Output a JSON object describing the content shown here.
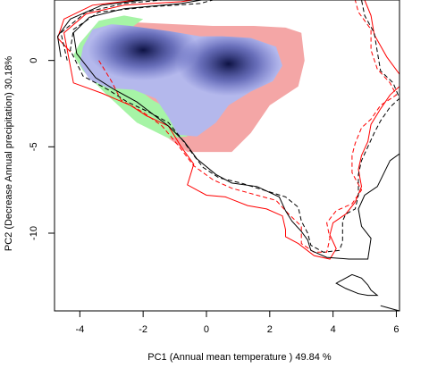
{
  "chart_data": {
    "type": "niche_overlap_map",
    "title": "",
    "xlabel": "PC1 (Annual mean temperature ) 49.84 %",
    "ylabel": "PC2 (Decrease Annual precipitation) 30.18%",
    "xlim": [
      -4.8,
      6.1
    ],
    "ylim": [
      -14.5,
      3.5
    ],
    "x_ticks": [
      -4,
      -2,
      0,
      2,
      4,
      6
    ],
    "y_ticks": [
      0,
      -5,
      -10
    ],
    "grid": false,
    "legend": "none",
    "colors": {
      "niche_a_only": "#f4a6a6",
      "niche_b_only": "#a6f4a6",
      "overlap": "#0a1050",
      "environment_a_line": "#ff0000",
      "environment_b_line": "#000000"
    },
    "density_peaks": [
      {
        "x": -2.0,
        "y": 0.6
      },
      {
        "x": 0.7,
        "y": -0.2
      }
    ],
    "regions": {
      "niche_a_only": [
        [
          -3.8,
          1.4
        ],
        [
          -3.2,
          2.0
        ],
        [
          -2.2,
          2.2
        ],
        [
          -1.0,
          2.1
        ],
        [
          0.2,
          2.0
        ],
        [
          1.5,
          2.0
        ],
        [
          2.5,
          1.9
        ],
        [
          3.0,
          1.6
        ],
        [
          3.1,
          0.0
        ],
        [
          2.9,
          -1.5
        ],
        [
          2.0,
          -2.6
        ],
        [
          1.4,
          -4.2
        ],
        [
          0.8,
          -5.3
        ],
        [
          -0.6,
          -5.3
        ],
        [
          -1.2,
          -4.5
        ],
        [
          -1.4,
          -3.2
        ],
        [
          -1.8,
          -2.2
        ],
        [
          -2.8,
          -1.5
        ],
        [
          -3.6,
          -0.8
        ],
        [
          -4.1,
          0.2
        ]
      ],
      "niche_b_only": [
        [
          -4.0,
          1.0
        ],
        [
          -3.4,
          2.3
        ],
        [
          -2.6,
          2.6
        ],
        [
          -2.0,
          2.4
        ],
        [
          -2.6,
          1.6
        ],
        [
          -3.0,
          0.6
        ],
        [
          -3.0,
          -0.6
        ],
        [
          -2.2,
          -1.6
        ],
        [
          -1.7,
          -2.3
        ],
        [
          -1.0,
          -3.0
        ],
        [
          -0.6,
          -4.4
        ],
        [
          -1.2,
          -4.5
        ],
        [
          -2.2,
          -3.6
        ],
        [
          -3.2,
          -1.9
        ],
        [
          -3.9,
          -0.6
        ],
        [
          -4.2,
          0.3
        ]
      ],
      "overlap": [
        [
          -3.9,
          0.8
        ],
        [
          -3.6,
          1.8
        ],
        [
          -3.0,
          2.1
        ],
        [
          -2.4,
          2.0
        ],
        [
          -1.2,
          1.7
        ],
        [
          -0.2,
          1.4
        ],
        [
          0.5,
          1.4
        ],
        [
          1.4,
          1.3
        ],
        [
          2.2,
          0.8
        ],
        [
          2.4,
          -0.3
        ],
        [
          2.1,
          -1.2
        ],
        [
          1.4,
          -1.8
        ],
        [
          0.7,
          -2.6
        ],
        [
          0.3,
          -3.6
        ],
        [
          -0.3,
          -4.4
        ],
        [
          -0.9,
          -4.3
        ],
        [
          -1.2,
          -3.3
        ],
        [
          -1.6,
          -2.2
        ],
        [
          -2.3,
          -1.7
        ],
        [
          -3.1,
          -1.6
        ],
        [
          -3.7,
          -1.1
        ],
        [
          -4.0,
          -0.2
        ]
      ]
    },
    "contours": {
      "environment_a_solid": [
        [
          -4.3,
          0.5
        ],
        [
          -4.7,
          1.3
        ],
        [
          -4.5,
          2.4
        ],
        [
          -3.6,
          3.2
        ],
        [
          -2.2,
          3.5
        ],
        [
          -0.7,
          3.6
        ],
        [
          0.3,
          3.7
        ],
        [
          -0.8,
          3.4
        ],
        [
          -2.6,
          3.2
        ],
        [
          -3.8,
          2.7
        ],
        [
          -4.5,
          1.6
        ],
        [
          -4.2,
          -1.3
        ],
        [
          -3.3,
          -1.9
        ],
        [
          -2.4,
          -2.6
        ],
        [
          -1.9,
          -3.2
        ],
        [
          -1.2,
          -3.8
        ],
        [
          -0.8,
          -5.0
        ],
        [
          -0.4,
          -6.0
        ],
        [
          -0.6,
          -7.2
        ],
        [
          0.0,
          -7.8
        ],
        [
          0.6,
          -7.9
        ],
        [
          1.3,
          -8.4
        ],
        [
          1.9,
          -8.6
        ],
        [
          2.4,
          -9.0
        ],
        [
          2.5,
          -9.8
        ],
        [
          2.5,
          -10.2
        ],
        [
          2.9,
          -10.6
        ],
        [
          3.4,
          -11.3
        ],
        [
          3.9,
          -11.5
        ],
        [
          4.1,
          -10.9
        ],
        [
          3.9,
          -10.1
        ],
        [
          4.0,
          -9.4
        ],
        [
          4.4,
          -8.9
        ],
        [
          4.7,
          -8.2
        ],
        [
          4.9,
          -7.3
        ],
        [
          4.8,
          -6.3
        ],
        [
          4.9,
          -5.5
        ],
        [
          5.1,
          -4.7
        ],
        [
          5.2,
          -3.7
        ],
        [
          5.5,
          -2.8
        ],
        [
          5.8,
          -2.0
        ],
        [
          6.1,
          -1.5
        ],
        [
          6.1,
          -0.8
        ],
        [
          5.7,
          0.2
        ],
        [
          5.3,
          1.5
        ],
        [
          5.2,
          2.6
        ],
        [
          5.0,
          3.5
        ]
      ],
      "environment_a_dashed": [
        [
          -3.4,
          0.0
        ],
        [
          -3.0,
          -1.2
        ],
        [
          -2.7,
          -2.3
        ],
        [
          -2.0,
          -3.0
        ],
        [
          -1.4,
          -3.8
        ],
        [
          -0.9,
          -4.9
        ],
        [
          -0.4,
          -6.1
        ],
        [
          0.2,
          -6.9
        ],
        [
          0.8,
          -7.4
        ],
        [
          1.6,
          -7.8
        ],
        [
          2.2,
          -8.1
        ],
        [
          2.6,
          -8.9
        ],
        [
          3.0,
          -9.6
        ],
        [
          3.0,
          -10.6
        ],
        [
          3.4,
          -11.1
        ],
        [
          3.8,
          -11.1
        ],
        [
          3.9,
          -10.3
        ],
        [
          3.8,
          -9.4
        ],
        [
          4.1,
          -8.7
        ],
        [
          4.6,
          -8.3
        ],
        [
          4.9,
          -7.5
        ],
        [
          4.6,
          -6.5
        ],
        [
          4.6,
          -5.5
        ],
        [
          4.7,
          -4.8
        ],
        [
          4.9,
          -3.9
        ],
        [
          5.2,
          -3.4
        ],
        [
          5.5,
          -2.6
        ],
        [
          6.0,
          -2.0
        ],
        [
          5.8,
          -1.3
        ],
        [
          5.4,
          -0.5
        ],
        [
          5.2,
          0.6
        ],
        [
          5.2,
          1.8
        ],
        [
          4.8,
          2.8
        ],
        [
          4.7,
          3.5
        ]
      ],
      "environment_b_solid": [
        [
          -4.6,
          0.2
        ],
        [
          -4.7,
          1.4
        ],
        [
          -4.3,
          2.4
        ],
        [
          -3.3,
          3.2
        ],
        [
          -2.0,
          3.5
        ],
        [
          -0.6,
          3.6
        ],
        [
          0.5,
          3.7
        ],
        [
          -0.8,
          3.3
        ],
        [
          -2.6,
          3.0
        ],
        [
          -3.7,
          2.5
        ],
        [
          -4.2,
          1.6
        ],
        [
          -4.1,
          0.4
        ],
        [
          -3.5,
          -1.0
        ],
        [
          -2.9,
          -1.7
        ],
        [
          -2.2,
          -2.4
        ],
        [
          -1.7,
          -3.1
        ],
        [
          -1.2,
          -3.8
        ],
        [
          -0.7,
          -4.7
        ],
        [
          -0.3,
          -5.7
        ],
        [
          0.3,
          -6.6
        ],
        [
          0.8,
          -7.1
        ],
        [
          1.6,
          -7.3
        ],
        [
          2.3,
          -7.9
        ],
        [
          2.5,
          -8.7
        ],
        [
          2.7,
          -9.3
        ],
        [
          3.0,
          -9.9
        ],
        [
          3.2,
          -10.4
        ],
        [
          3.3,
          -11.0
        ],
        [
          3.8,
          -11.4
        ],
        [
          4.5,
          -11.5
        ],
        [
          5.1,
          -11.5
        ],
        [
          5.2,
          -10.3
        ],
        [
          4.9,
          -9.6
        ],
        [
          4.8,
          -8.6
        ],
        [
          5.0,
          -7.8
        ],
        [
          5.4,
          -7.3
        ],
        [
          5.8,
          -5.8
        ],
        [
          6.1,
          -5.4
        ]
      ],
      "environment_b_dashed": [
        [
          -4.4,
          0.0
        ],
        [
          -4.6,
          1.6
        ],
        [
          -3.8,
          2.8
        ],
        [
          -2.6,
          3.3
        ],
        [
          -1.4,
          3.5
        ],
        [
          0.4,
          3.6
        ],
        [
          -0.2,
          3.3
        ],
        [
          -1.8,
          3.1
        ],
        [
          -3.4,
          2.8
        ],
        [
          -4.2,
          1.8
        ],
        [
          -4.3,
          0.6
        ],
        [
          -3.9,
          -0.9
        ],
        [
          -3.1,
          -1.7
        ],
        [
          -2.5,
          -2.4
        ],
        [
          -1.8,
          -3.0
        ],
        [
          -1.2,
          -3.6
        ],
        [
          -0.8,
          -4.5
        ],
        [
          -0.4,
          -5.5
        ],
        [
          -0.1,
          -6.2
        ],
        [
          0.4,
          -6.8
        ],
        [
          1.1,
          -7.1
        ],
        [
          1.8,
          -7.5
        ],
        [
          2.5,
          -7.9
        ],
        [
          2.9,
          -8.5
        ],
        [
          3.0,
          -9.3
        ],
        [
          3.2,
          -10.0
        ],
        [
          3.3,
          -10.7
        ],
        [
          3.7,
          -11.1
        ],
        [
          4.2,
          -11.0
        ],
        [
          4.3,
          -10.5
        ],
        [
          4.3,
          -9.9
        ],
        [
          4.3,
          -9.3
        ],
        [
          4.4,
          -8.9
        ],
        [
          4.7,
          -8.6
        ],
        [
          4.8,
          -7.8
        ],
        [
          4.8,
          -6.6
        ],
        [
          4.9,
          -5.8
        ],
        [
          5.1,
          -5.0
        ],
        [
          5.3,
          -4.2
        ],
        [
          5.5,
          -3.5
        ],
        [
          5.8,
          -2.7
        ],
        [
          6.1,
          -2.2
        ],
        [
          5.9,
          -1.3
        ],
        [
          5.5,
          -0.6
        ],
        [
          5.4,
          0.5
        ],
        [
          5.3,
          1.6
        ],
        [
          5.0,
          2.6
        ],
        [
          4.9,
          3.5
        ]
      ],
      "environment_b_island": [
        [
          4.2,
          -12.8
        ],
        [
          4.6,
          -12.4
        ],
        [
          4.9,
          -12.6
        ],
        [
          5.1,
          -13.0
        ],
        [
          5.2,
          -13.3
        ],
        [
          5.4,
          -13.6
        ],
        [
          5.1,
          -13.6
        ],
        [
          4.8,
          -13.5
        ],
        [
          4.4,
          -13.2
        ],
        [
          4.1,
          -12.9
        ],
        [
          4.2,
          -12.8
        ]
      ],
      "environment_b_corner": [
        [
          5.5,
          -14.2
        ],
        [
          5.7,
          -14.3
        ],
        [
          5.9,
          -14.4
        ],
        [
          6.1,
          -14.5
        ]
      ]
    }
  }
}
